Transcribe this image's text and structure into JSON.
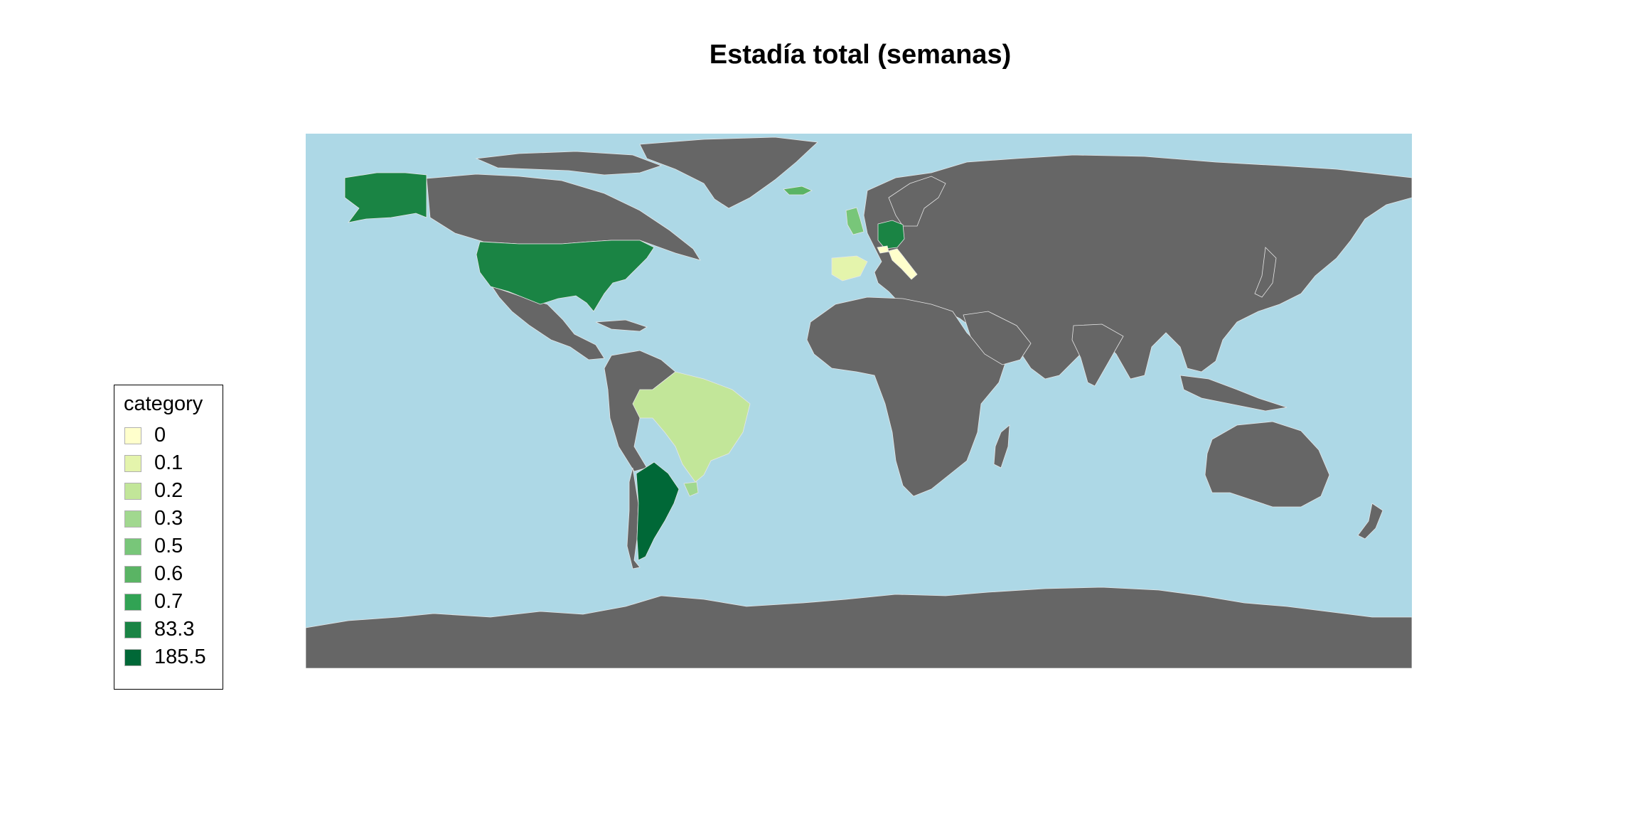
{
  "title": "Estadía total (semanas)",
  "colors": {
    "ocean": "#add8e6",
    "land_nodata": "#666666",
    "border": "#e6e6e6"
  },
  "legend": {
    "title": "category",
    "items": [
      {
        "label": "0",
        "color": "#ffffcc"
      },
      {
        "label": "0.1",
        "color": "#e4f4ac"
      },
      {
        "label": "0.2",
        "color": "#c2e699"
      },
      {
        "label": "0.3",
        "color": "#a1d88f"
      },
      {
        "label": "0.5",
        "color": "#78c679"
      },
      {
        "label": "0.6",
        "color": "#5ab464"
      },
      {
        "label": "0.7",
        "color": "#31a354"
      },
      {
        "label": "83.3",
        "color": "#1a8444"
      },
      {
        "label": "185.5",
        "color": "#006837"
      }
    ]
  },
  "highlighted_regions": [
    {
      "region": "usa-alaska",
      "category": "83.3"
    },
    {
      "region": "germany",
      "category": "83.3"
    },
    {
      "region": "argentina",
      "category": "185.5"
    },
    {
      "region": "brazil",
      "category": "0.2"
    },
    {
      "region": "spain",
      "category": "0.1"
    },
    {
      "region": "italy",
      "category": "0"
    },
    {
      "region": "switzerland",
      "category": "0"
    },
    {
      "region": "uk",
      "category": "0.5"
    },
    {
      "region": "iceland",
      "category": "0.6"
    },
    {
      "region": "uruguay",
      "category": "0.3"
    }
  ]
}
